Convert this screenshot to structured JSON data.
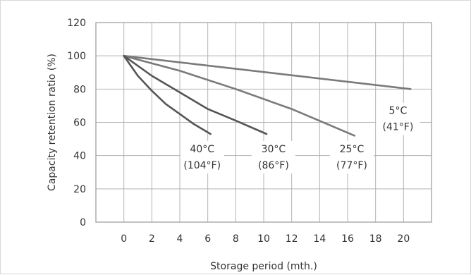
{
  "chart_data": {
    "type": "line",
    "title": "",
    "xlabel": "Storage period (mth.)",
    "ylabel": "Capacity retention ratio (%)",
    "xlim": [
      -2,
      22
    ],
    "ylim": [
      0,
      120
    ],
    "x_ticks": [
      0,
      2,
      4,
      6,
      8,
      10,
      12,
      14,
      16,
      18,
      20
    ],
    "y_ticks": [
      0,
      20,
      40,
      60,
      80,
      100,
      120
    ],
    "grid": true,
    "series": [
      {
        "name": "5°C (41°F)",
        "color": "#7a7a7a",
        "points": [
          [
            0,
            100
          ],
          [
            20.5,
            80
          ]
        ]
      },
      {
        "name": "25°C (77°F)",
        "color": "#7a7a7a",
        "points": [
          [
            0,
            100
          ],
          [
            4,
            91
          ],
          [
            8,
            80
          ],
          [
            12,
            68
          ],
          [
            16.5,
            52
          ]
        ]
      },
      {
        "name": "30°C (86°F)",
        "color": "#555555",
        "points": [
          [
            0,
            100
          ],
          [
            2,
            88
          ],
          [
            4,
            78
          ],
          [
            6,
            68
          ],
          [
            8,
            61
          ],
          [
            10.2,
            53
          ]
        ]
      },
      {
        "name": "40°C (104°F)",
        "color": "#555555",
        "points": [
          [
            0,
            100
          ],
          [
            1,
            88
          ],
          [
            2,
            79
          ],
          [
            3,
            71
          ],
          [
            4,
            65
          ],
          [
            5,
            59
          ],
          [
            6.2,
            53
          ]
        ]
      }
    ],
    "annotations": [
      {
        "line1": "5°C",
        "line2": "(41°F)",
        "x": 19.6,
        "y": 65
      },
      {
        "line1": "40°C",
        "line2": "(104°F)",
        "x": 5.6,
        "y": 42
      },
      {
        "line1": "30°C",
        "line2": "(86°F)",
        "x": 10.7,
        "y": 42
      },
      {
        "line1": "25°C",
        "line2": "(77°F)",
        "x": 16.3,
        "y": 42
      }
    ]
  }
}
